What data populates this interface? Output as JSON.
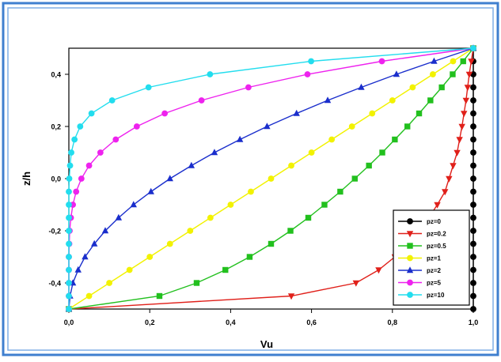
{
  "chart_data": {
    "type": "line",
    "title": "",
    "xlabel": "Vu",
    "ylabel": "z/h",
    "xlim": [
      0,
      1
    ],
    "ylim": [
      -0.5,
      0.5
    ],
    "x_ticks": [
      "0,0",
      "0,2",
      "0,4",
      "0,6",
      "0,8",
      "1,0"
    ],
    "y_ticks": [
      "-0,4",
      "-0,2",
      "0,0",
      "0,2",
      "0,4"
    ],
    "legend_position": "bottom-right",
    "grid": false,
    "z": [
      -0.5,
      -0.45,
      -0.4,
      -0.35,
      -0.3,
      -0.25,
      -0.2,
      -0.15,
      -0.1,
      -0.05,
      0.0,
      0.05,
      0.1,
      0.15,
      0.2,
      0.25,
      0.3,
      0.35,
      0.4,
      0.45,
      0.5
    ],
    "series": [
      {
        "name": "pz=0",
        "color": "#000000",
        "marker": "circle",
        "x": [
          1.0,
          1.0,
          1.0,
          1.0,
          1.0,
          1.0,
          1.0,
          1.0,
          1.0,
          1.0,
          1.0,
          1.0,
          1.0,
          1.0,
          1.0,
          1.0,
          1.0,
          1.0,
          1.0,
          1.0,
          1.0
        ]
      },
      {
        "name": "pz=0.2",
        "color": "#e0201a",
        "marker": "triangle-down",
        "x": [
          0.0,
          0.55,
          0.71,
          0.766,
          0.806,
          0.838,
          0.866,
          0.89,
          0.911,
          0.93,
          0.94,
          0.95,
          0.96,
          0.966,
          0.972,
          0.977,
          0.982,
          0.986,
          0.99,
          0.995,
          1.0
        ]
      },
      {
        "name": "pz=0.5",
        "color": "#22c01e",
        "marker": "square",
        "x": [
          0.0,
          0.224,
          0.316,
          0.387,
          0.447,
          0.5,
          0.548,
          0.592,
          0.632,
          0.671,
          0.707,
          0.742,
          0.775,
          0.806,
          0.837,
          0.866,
          0.894,
          0.922,
          0.949,
          0.975,
          1.0
        ]
      },
      {
        "name": "pz=1",
        "color": "#f2f200",
        "marker": "circle",
        "x": [
          0.0,
          0.05,
          0.1,
          0.15,
          0.2,
          0.25,
          0.3,
          0.35,
          0.4,
          0.45,
          0.5,
          0.55,
          0.6,
          0.65,
          0.7,
          0.75,
          0.8,
          0.85,
          0.9,
          0.95,
          1.0
        ]
      },
      {
        "name": "pz=2",
        "color": "#1a2ecc",
        "marker": "triangle-up",
        "x": [
          0.0,
          0.003,
          0.01,
          0.023,
          0.04,
          0.063,
          0.09,
          0.123,
          0.16,
          0.203,
          0.25,
          0.303,
          0.36,
          0.423,
          0.49,
          0.563,
          0.64,
          0.723,
          0.81,
          0.903,
          1.0
        ]
      },
      {
        "name": "pz=5",
        "color": "#ee22ee",
        "marker": "circle",
        "x": [
          0.0,
          0.0,
          0.0,
          0.0,
          0.0,
          0.001,
          0.002,
          0.005,
          0.01,
          0.018,
          0.031,
          0.05,
          0.078,
          0.116,
          0.168,
          0.237,
          0.328,
          0.444,
          0.59,
          0.774,
          1.0
        ]
      },
      {
        "name": "pz=10",
        "color": "#22ddee",
        "marker": "circle",
        "x": [
          0.0,
          0.0,
          0.0,
          0.0,
          0.0,
          0.0,
          0.0,
          0.0,
          0.0,
          0.0,
          0.001,
          0.003,
          0.006,
          0.014,
          0.028,
          0.056,
          0.107,
          0.197,
          0.349,
          0.599,
          1.0
        ]
      }
    ]
  }
}
